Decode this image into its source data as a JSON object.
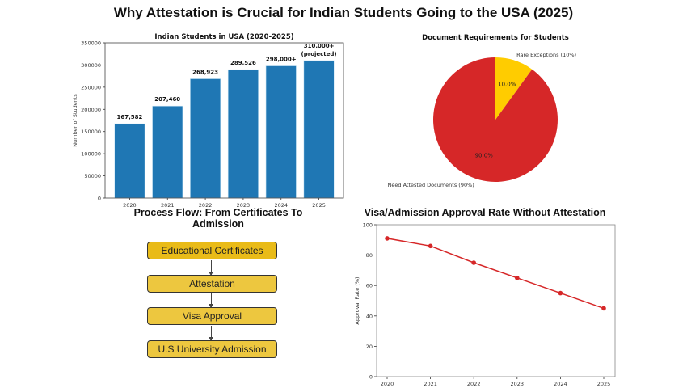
{
  "title": "Why Attestation is Crucial for Indian Students Going to the USA (2025)",
  "chart_data": [
    {
      "type": "bar",
      "title": "Indian Students in USA (2020-2025)",
      "xlabel": "",
      "ylabel": "Number of Students",
      "categories": [
        "2020",
        "2021",
        "2022",
        "2023",
        "2024",
        "2025"
      ],
      "values": [
        167582,
        207460,
        268923,
        289526,
        298000,
        310000
      ],
      "data_labels": [
        "167,582",
        "207,460",
        "268,923",
        "289,526",
        "298,000+",
        "310,000+\n(projected)"
      ],
      "ylim": [
        0,
        350000
      ],
      "yticks": [
        "0",
        "50000",
        "100000",
        "150000",
        "200000",
        "250000",
        "300000",
        "350000"
      ],
      "color": "#1f77b4",
      "grid": false
    },
    {
      "type": "pie",
      "title": "Document Requirements for Students",
      "slices": [
        {
          "label": "Rare Exceptions (10%)",
          "value": 10,
          "pct_label": "10.0%",
          "color": "#ffcc00"
        },
        {
          "label": "Need Attested Documents (90%)",
          "value": 90,
          "pct_label": "90.0%",
          "color": "#d62728"
        }
      ],
      "start_angle": "top, clockwise"
    },
    {
      "type": "line",
      "title": "Visa/Admission Approval Rate Without Attestation",
      "xlabel": "",
      "ylabel": "Approval Rate (%)",
      "x": [
        "2020",
        "2021",
        "2022",
        "2023",
        "2024",
        "2025"
      ],
      "values": [
        91,
        86,
        75,
        65,
        55,
        45
      ],
      "ylim": [
        0,
        100
      ],
      "yticks": [
        "0",
        "20",
        "40",
        "60",
        "80",
        "100"
      ],
      "color": "#d62728",
      "grid": false
    }
  ],
  "flow": {
    "title": "Process Flow: From Certificates To Admission",
    "steps": [
      "Educational Certificates",
      "Attestation",
      "Visa Approval",
      "U.S University Admission"
    ]
  }
}
